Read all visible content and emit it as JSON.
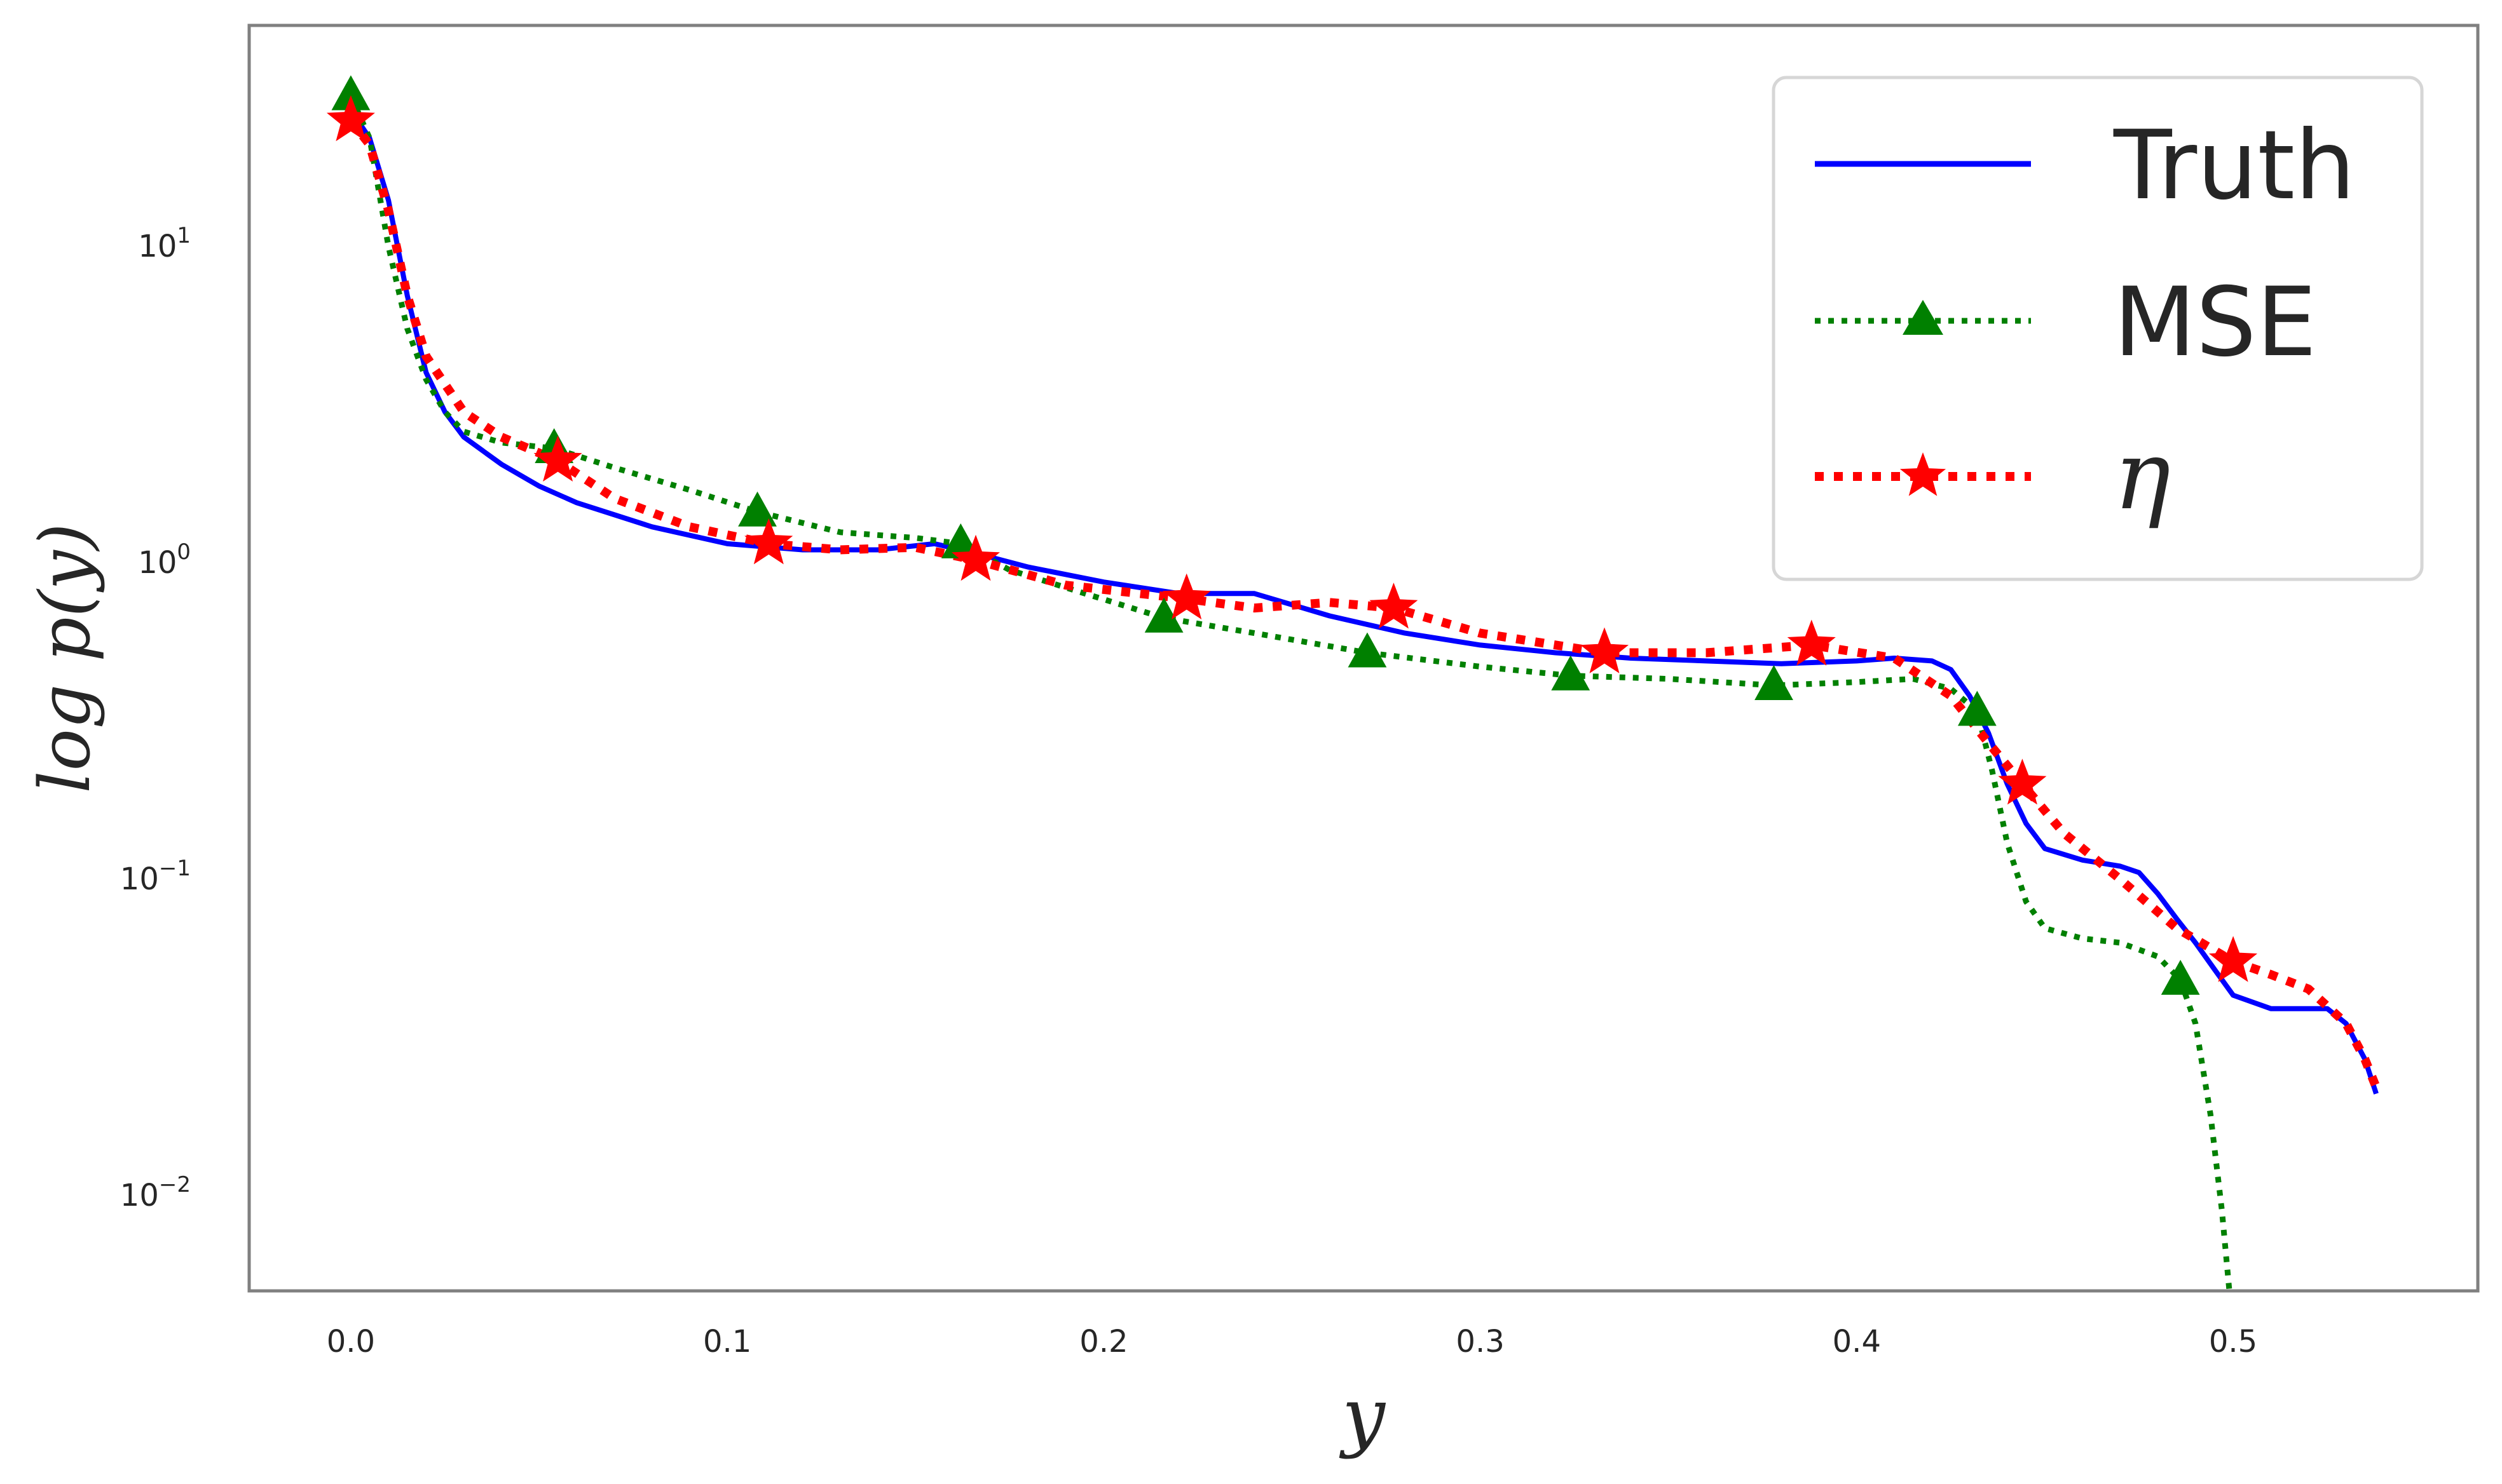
{
  "chart_data": {
    "type": "line",
    "xlabel": "y",
    "ylabel": "log p(y)",
    "yscale": "log",
    "xlim": [
      -0.027,
      0.565
    ],
    "ylim": [
      0.005,
      50
    ],
    "xticks": [
      0.0,
      0.1,
      0.2,
      0.3,
      0.4,
      0.5
    ],
    "xtick_labels": [
      "0.0",
      "0.1",
      "0.2",
      "0.3",
      "0.4",
      "0.5"
    ],
    "yticks": [
      0.01,
      0.1,
      1,
      10
    ],
    "ytick_labels": [
      {
        "base": "10",
        "exp": "−2"
      },
      {
        "base": "10",
        "exp": "−1"
      },
      {
        "base": "10",
        "exp": "0"
      },
      {
        "base": "10",
        "exp": "1"
      }
    ],
    "grid": false,
    "legend_position": "top-right",
    "series": [
      {
        "name": "Truth",
        "color": "#0000ff",
        "style": "solid",
        "marker": "none",
        "x": [
          0.0,
          0.005,
          0.01,
          0.015,
          0.02,
          0.025,
          0.03,
          0.04,
          0.05,
          0.06,
          0.08,
          0.1,
          0.12,
          0.14,
          0.155,
          0.165,
          0.18,
          0.2,
          0.22,
          0.24,
          0.26,
          0.28,
          0.3,
          0.32,
          0.34,
          0.36,
          0.38,
          0.4,
          0.41,
          0.42,
          0.425,
          0.43,
          0.435,
          0.44,
          0.445,
          0.45,
          0.46,
          0.47,
          0.475,
          0.48,
          0.485,
          0.49,
          0.495,
          0.5,
          0.51,
          0.52,
          0.525,
          0.53,
          0.535,
          0.538
        ],
        "y": [
          27,
          22,
          14,
          7,
          4,
          3.0,
          2.5,
          2.05,
          1.75,
          1.55,
          1.3,
          1.15,
          1.1,
          1.1,
          1.15,
          1.08,
          0.97,
          0.87,
          0.8,
          0.8,
          0.68,
          0.6,
          0.55,
          0.52,
          0.5,
          0.49,
          0.48,
          0.49,
          0.5,
          0.49,
          0.46,
          0.38,
          0.29,
          0.2,
          0.15,
          0.125,
          0.115,
          0.11,
          0.105,
          0.09,
          0.075,
          0.063,
          0.052,
          0.043,
          0.039,
          0.039,
          0.039,
          0.035,
          0.027,
          0.021
        ]
      },
      {
        "name": "MSE",
        "color": "#008000",
        "style": "dotted",
        "marker": "triangle",
        "x": [
          0.0,
          0.005,
          0.01,
          0.015,
          0.02,
          0.025,
          0.03,
          0.04,
          0.054,
          0.07,
          0.09,
          0.108,
          0.13,
          0.15,
          0.162,
          0.175,
          0.195,
          0.216,
          0.24,
          0.27,
          0.3,
          0.324,
          0.35,
          0.378,
          0.4,
          0.415,
          0.425,
          0.432,
          0.436,
          0.44,
          0.445,
          0.45,
          0.46,
          0.47,
          0.48,
          0.486,
          0.49,
          0.494,
          0.497,
          0.499
        ],
        "y": [
          30,
          22,
          10,
          5.5,
          3.8,
          3.0,
          2.6,
          2.4,
          2.3,
          2.0,
          1.7,
          1.45,
          1.25,
          1.2,
          1.15,
          0.95,
          0.8,
          0.67,
          0.6,
          0.52,
          0.47,
          0.44,
          0.43,
          0.41,
          0.42,
          0.43,
          0.4,
          0.34,
          0.22,
          0.13,
          0.085,
          0.07,
          0.065,
          0.063,
          0.057,
          0.048,
          0.035,
          0.018,
          0.009,
          0.005
        ],
        "markers_x": [
          0.0,
          0.054,
          0.108,
          0.162,
          0.216,
          0.27,
          0.324,
          0.378,
          0.432,
          0.486
        ],
        "markers_y": [
          30,
          2.3,
          1.45,
          1.15,
          0.67,
          0.52,
          0.44,
          0.41,
          0.34,
          0.048
        ]
      },
      {
        "name": "η",
        "color": "#ff0000",
        "style": "dotted",
        "marker": "star",
        "x": [
          0.0,
          0.005,
          0.01,
          0.015,
          0.02,
          0.03,
          0.04,
          0.055,
          0.07,
          0.09,
          0.111,
          0.13,
          0.15,
          0.166,
          0.19,
          0.222,
          0.24,
          0.26,
          0.277,
          0.3,
          0.333,
          0.36,
          0.388,
          0.41,
          0.425,
          0.435,
          0.444,
          0.455,
          0.47,
          0.485,
          0.5,
          0.51,
          0.52,
          0.53,
          0.535,
          0.538
        ],
        "y": [
          25,
          21,
          13,
          7,
          4.5,
          3.0,
          2.5,
          2.1,
          1.6,
          1.3,
          1.15,
          1.1,
          1.12,
          1.02,
          0.85,
          0.77,
          0.72,
          0.75,
          0.72,
          0.6,
          0.52,
          0.52,
          0.55,
          0.5,
          0.38,
          0.27,
          0.2,
          0.14,
          0.1,
          0.07,
          0.055,
          0.05,
          0.045,
          0.035,
          0.027,
          0.022
        ],
        "markers_x": [
          0.0,
          0.055,
          0.111,
          0.166,
          0.222,
          0.277,
          0.333,
          0.388,
          0.444,
          0.5
        ],
        "markers_y": [
          25,
          2.1,
          1.15,
          1.02,
          0.77,
          0.72,
          0.52,
          0.55,
          0.2,
          0.055
        ]
      }
    ]
  }
}
